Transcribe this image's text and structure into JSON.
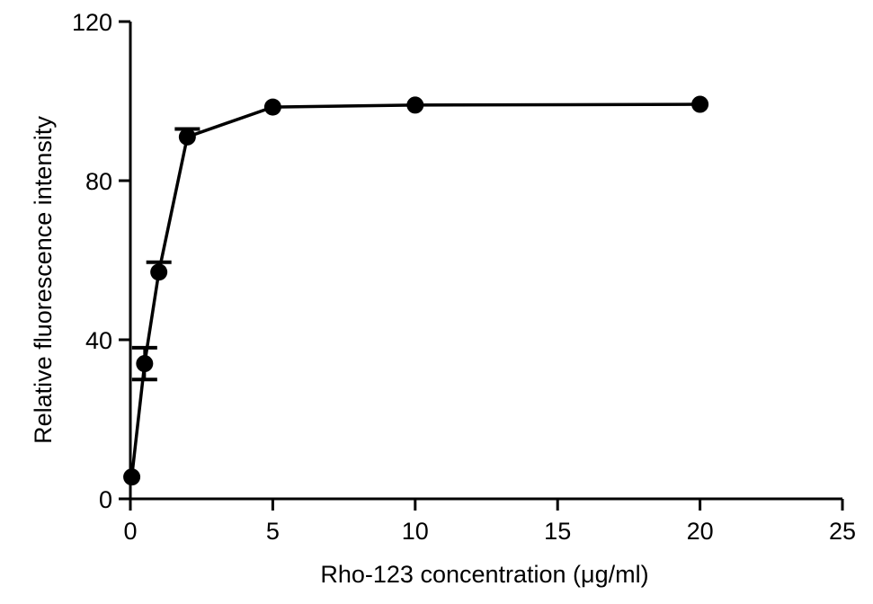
{
  "chart_data": {
    "type": "line",
    "title": "",
    "xlabel": "Rho-123 concentration (μg/ml)",
    "ylabel": "Relative fluorescence intensity",
    "xlim": [
      0,
      25
    ],
    "ylim": [
      0,
      120
    ],
    "xticks": [
      0,
      5,
      10,
      15,
      20,
      25
    ],
    "yticks": [
      0,
      40,
      80,
      120
    ],
    "xtick_labels": [
      "0",
      "5",
      "10",
      "15",
      "20",
      "25"
    ],
    "ytick_labels": [
      "0",
      "40",
      "80",
      "120"
    ],
    "grid": false,
    "legend": "none",
    "color": "#000000",
    "marker": "filled-circle",
    "series": [
      {
        "x": [
          0.05,
          0.5,
          1,
          2,
          5,
          10,
          20
        ],
        "y": [
          5.5,
          34,
          57,
          91,
          98.5,
          99,
          99.2
        ],
        "error_upper": [
          null,
          38,
          59.5,
          93,
          null,
          null,
          null
        ],
        "error_lower": [
          null,
          30,
          null,
          null,
          null,
          null,
          null
        ]
      }
    ]
  }
}
